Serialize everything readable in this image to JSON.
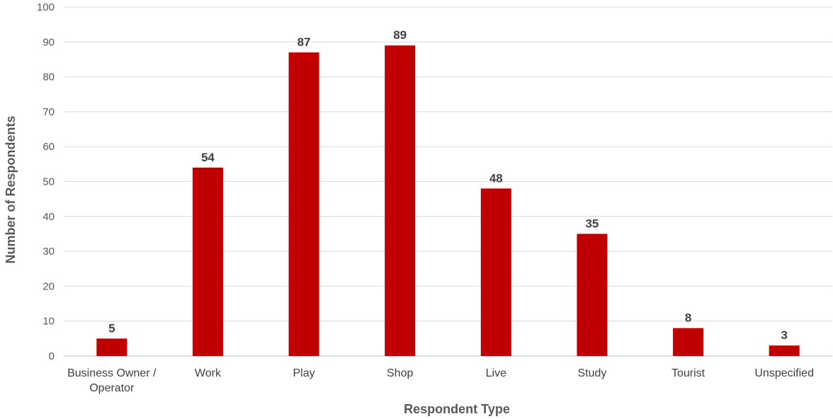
{
  "chart_data": {
    "type": "bar",
    "categories": [
      "Business Owner / Operator",
      "Work",
      "Play",
      "Shop",
      "Live",
      "Study",
      "Tourist",
      "Unspecified"
    ],
    "category_lines": [
      [
        "Business Owner /",
        "Operator"
      ],
      [
        "Work"
      ],
      [
        "Play"
      ],
      [
        "Shop"
      ],
      [
        "Live"
      ],
      [
        "Study"
      ],
      [
        "Tourist"
      ],
      [
        "Unspecified"
      ]
    ],
    "values": [
      5,
      54,
      87,
      89,
      48,
      35,
      8,
      3
    ],
    "data_labels": [
      "5",
      "54",
      "87",
      "89",
      "48",
      "35",
      "8",
      "3"
    ],
    "yticks": [
      "0",
      "10",
      "20",
      "30",
      "40",
      "50",
      "60",
      "70",
      "80",
      "90",
      "100"
    ],
    "title": "",
    "xlabel": "Respondent Type",
    "ylabel": "Number of Respondents",
    "ylim": [
      0,
      100
    ],
    "grid": true,
    "legend": "none",
    "bar_color": "#c00000"
  }
}
